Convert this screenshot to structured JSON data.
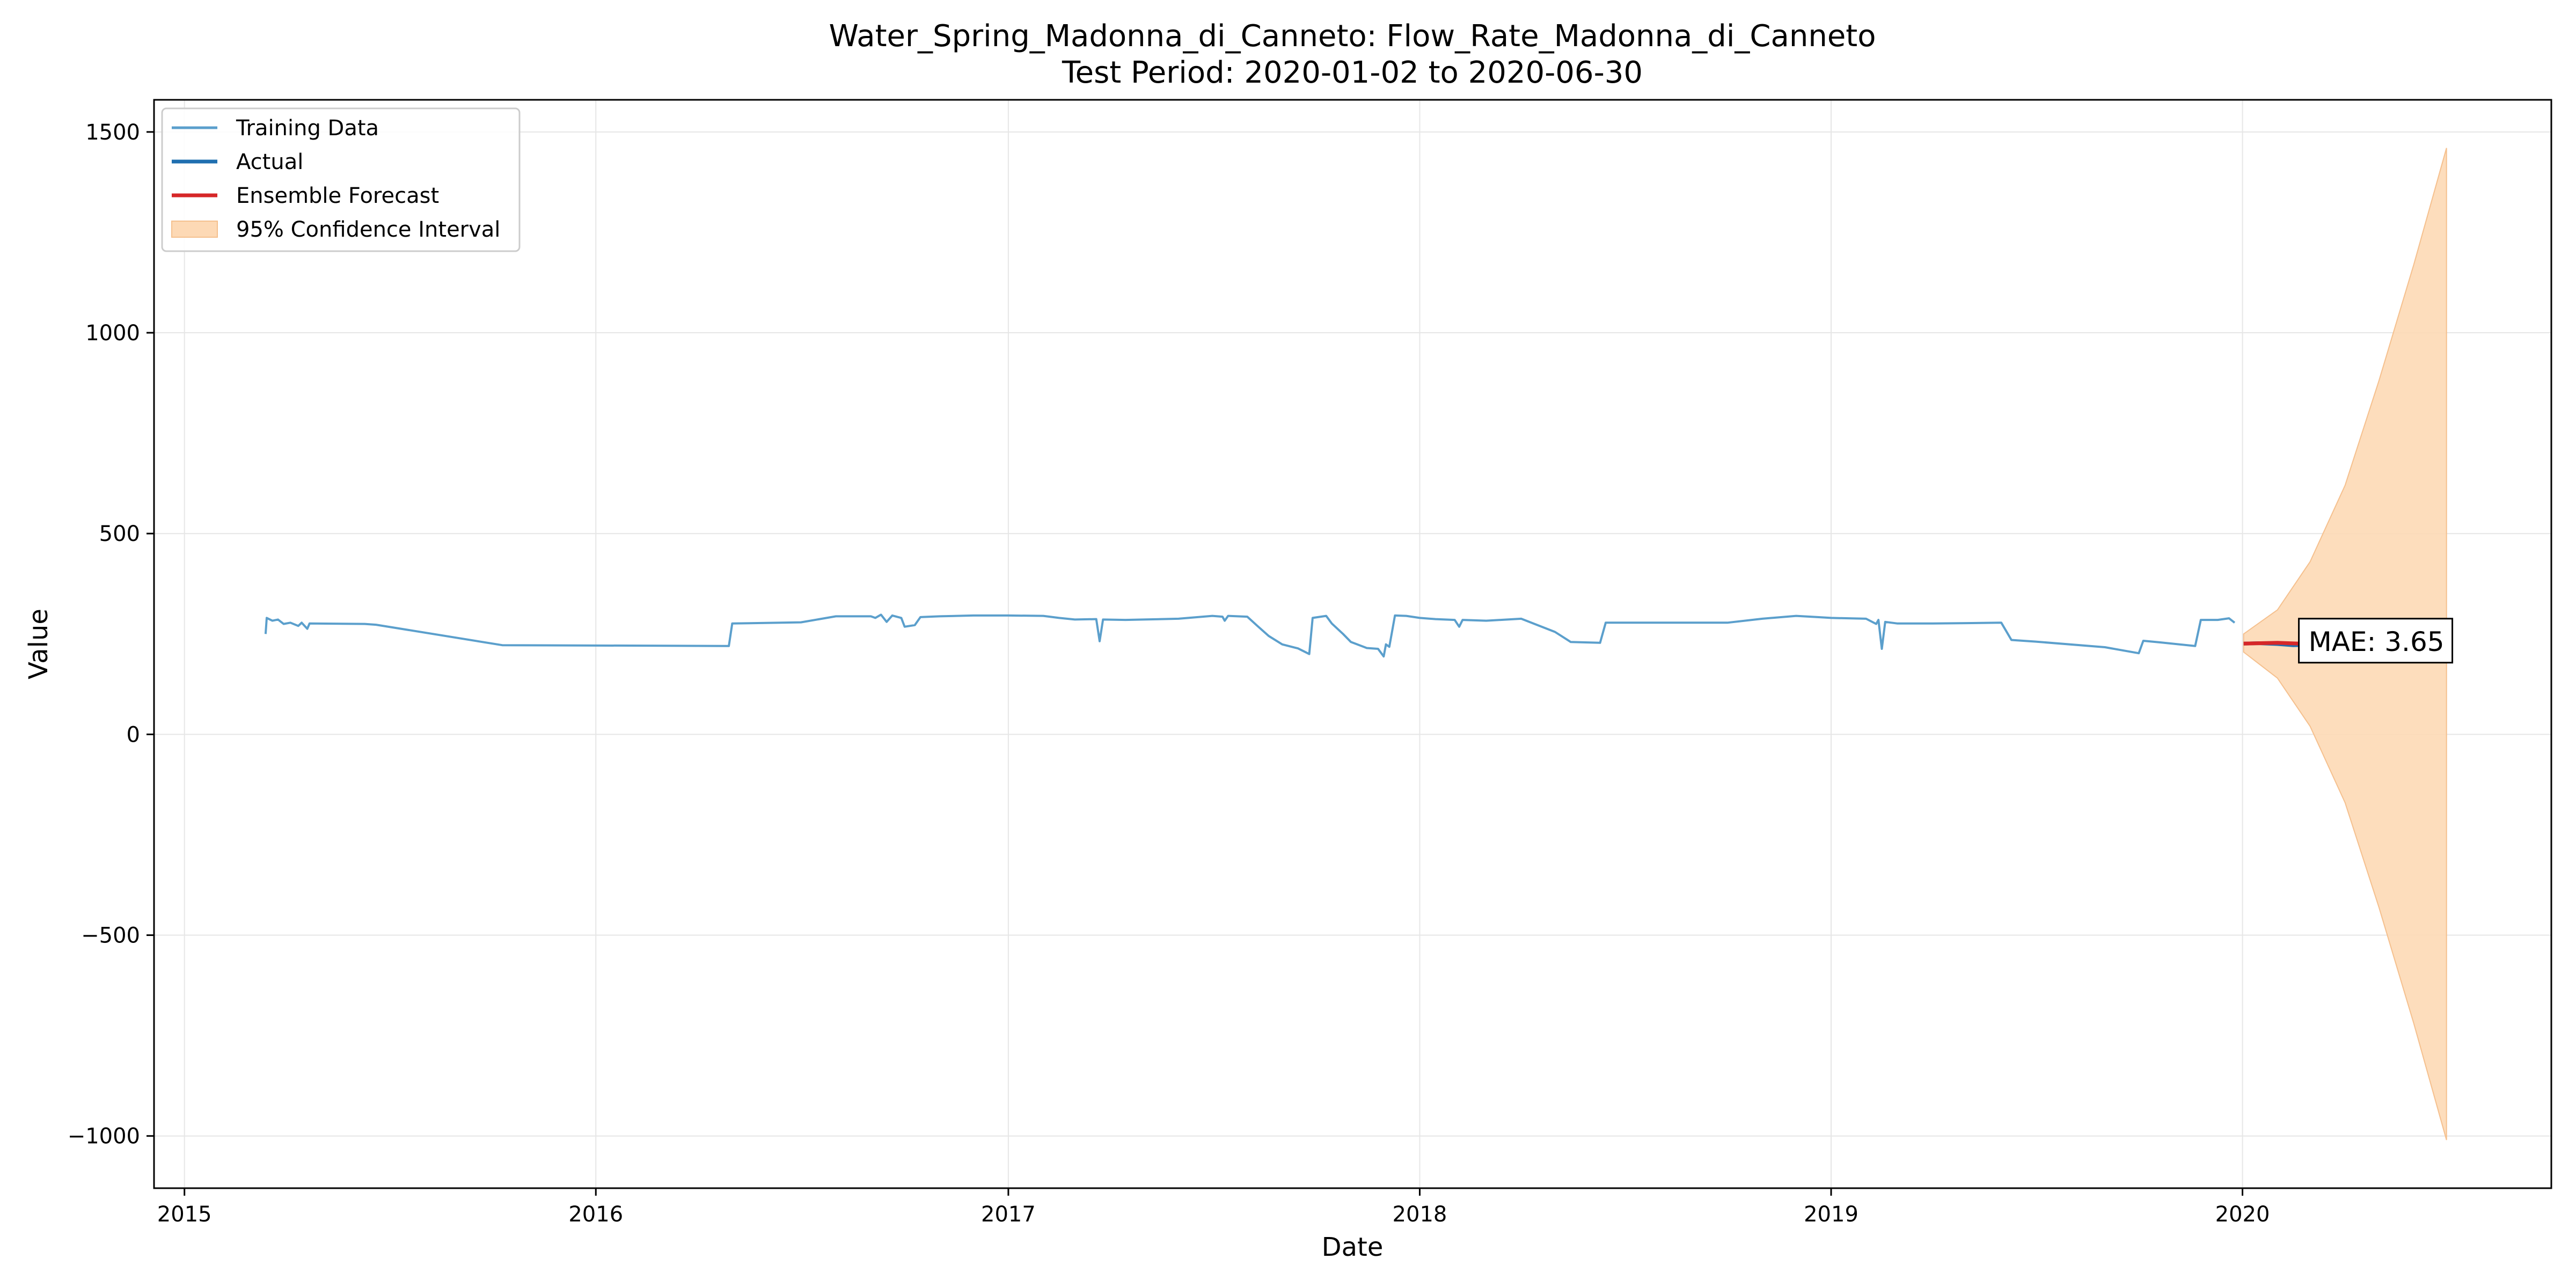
{
  "chart_data": {
    "type": "line",
    "title": "Water_Spring_Madonna_di_Canneto: Flow_Rate_Madonna_di_Canneto",
    "subtitle": "Test Period: 2020-01-02 to 2020-06-30",
    "xlabel": "Date",
    "ylabel": "Value",
    "xlim": [
      "2014-12-05",
      "2020-10-01"
    ],
    "ylim": [
      -1130,
      1580
    ],
    "xticks": [
      {
        "date": "2015-01-01",
        "label": "2015"
      },
      {
        "date": "2016-01-01",
        "label": "2016"
      },
      {
        "date": "2017-01-01",
        "label": "2017"
      },
      {
        "date": "2018-01-01",
        "label": "2018"
      },
      {
        "date": "2019-01-01",
        "label": "2019"
      },
      {
        "date": "2020-01-01",
        "label": "2020"
      }
    ],
    "yticks": [
      {
        "value": -1000,
        "label": "−1000"
      },
      {
        "value": -500,
        "label": "−500"
      },
      {
        "value": 0,
        "label": "0"
      },
      {
        "value": 500,
        "label": "500"
      },
      {
        "value": 1000,
        "label": "1000"
      },
      {
        "value": 1500,
        "label": "1500"
      }
    ],
    "grid": true,
    "legend_position": "top-left",
    "annotation": {
      "text": "MAE: 3.65",
      "date": "2020-02-20",
      "value": 232
    },
    "series": [
      {
        "name": "Training Data",
        "color": "#5b9fcc",
        "points": [
          [
            "2015-03-14",
            250
          ],
          [
            "2015-03-15",
            290
          ],
          [
            "2015-03-20",
            283
          ],
          [
            "2015-03-25",
            286
          ],
          [
            "2015-03-30",
            275
          ],
          [
            "2015-04-05",
            278
          ],
          [
            "2015-04-12",
            270
          ],
          [
            "2015-04-15",
            278
          ],
          [
            "2015-04-20",
            263
          ],
          [
            "2015-04-22",
            276
          ],
          [
            "2015-06-10",
            275
          ],
          [
            "2015-06-20",
            273
          ],
          [
            "2015-10-10",
            222
          ],
          [
            "2016-04-28",
            220
          ],
          [
            "2016-05-01",
            276
          ],
          [
            "2016-07-01",
            279
          ],
          [
            "2016-08-01",
            294
          ],
          [
            "2016-09-01",
            294
          ],
          [
            "2016-09-05",
            290
          ],
          [
            "2016-09-10",
            298
          ],
          [
            "2016-09-15",
            280
          ],
          [
            "2016-09-20",
            296
          ],
          [
            "2016-09-28",
            290
          ],
          [
            "2016-10-01",
            268
          ],
          [
            "2016-10-10",
            272
          ],
          [
            "2016-10-15",
            292
          ],
          [
            "2016-11-01",
            294
          ],
          [
            "2016-12-01",
            296
          ],
          [
            "2017-01-01",
            296
          ],
          [
            "2017-02-01",
            295
          ],
          [
            "2017-02-15",
            290
          ],
          [
            "2017-03-01",
            286
          ],
          [
            "2017-03-20",
            287
          ],
          [
            "2017-03-23",
            232
          ],
          [
            "2017-03-26",
            286
          ],
          [
            "2017-04-15",
            285
          ],
          [
            "2017-05-01",
            286
          ],
          [
            "2017-06-01",
            288
          ],
          [
            "2017-07-01",
            295
          ],
          [
            "2017-07-10",
            293
          ],
          [
            "2017-07-12",
            283
          ],
          [
            "2017-07-15",
            295
          ],
          [
            "2017-08-01",
            293
          ],
          [
            "2017-08-10",
            270
          ],
          [
            "2017-08-20",
            245
          ],
          [
            "2017-09-01",
            224
          ],
          [
            "2017-09-15",
            214
          ],
          [
            "2017-09-25",
            200
          ],
          [
            "2017-09-28",
            290
          ],
          [
            "2017-10-10",
            295
          ],
          [
            "2017-10-15",
            276
          ],
          [
            "2017-10-25",
            250
          ],
          [
            "2017-11-01",
            230
          ],
          [
            "2017-11-15",
            215
          ],
          [
            "2017-11-25",
            213
          ],
          [
            "2017-11-30",
            194
          ],
          [
            "2017-12-02",
            224
          ],
          [
            "2017-12-05",
            218
          ],
          [
            "2017-12-10",
            296
          ],
          [
            "2017-12-20",
            295
          ],
          [
            "2018-01-01",
            290
          ],
          [
            "2018-01-15",
            287
          ],
          [
            "2018-02-01",
            285
          ],
          [
            "2018-02-05",
            268
          ],
          [
            "2018-02-08",
            285
          ],
          [
            "2018-03-01",
            283
          ],
          [
            "2018-04-01",
            288
          ],
          [
            "2018-05-01",
            255
          ],
          [
            "2018-05-15",
            230
          ],
          [
            "2018-06-10",
            228
          ],
          [
            "2018-06-15",
            278
          ],
          [
            "2018-07-01",
            278
          ],
          [
            "2018-08-01",
            278
          ],
          [
            "2018-10-01",
            278
          ],
          [
            "2018-11-01",
            288
          ],
          [
            "2018-12-01",
            295
          ],
          [
            "2018-12-20",
            292
          ],
          [
            "2019-01-01",
            290
          ],
          [
            "2019-02-01",
            288
          ],
          [
            "2019-02-10",
            275
          ],
          [
            "2019-02-12",
            285
          ],
          [
            "2019-02-15",
            213
          ],
          [
            "2019-02-18",
            280
          ],
          [
            "2019-03-01",
            276
          ],
          [
            "2019-04-01",
            276
          ],
          [
            "2019-05-01",
            277
          ],
          [
            "2019-06-01",
            278
          ],
          [
            "2019-06-10",
            235
          ],
          [
            "2019-07-01",
            231
          ],
          [
            "2019-09-01",
            217
          ],
          [
            "2019-10-01",
            202
          ],
          [
            "2019-10-05",
            233
          ],
          [
            "2019-10-20",
            229
          ],
          [
            "2019-11-20",
            220
          ],
          [
            "2019-11-25",
            285
          ],
          [
            "2019-12-10",
            285
          ],
          [
            "2019-12-20",
            289
          ],
          [
            "2019-12-25",
            278
          ]
        ]
      },
      {
        "name": "Actual",
        "color": "#1f6fb0",
        "points": [
          [
            "2020-01-02",
            226
          ],
          [
            "2020-01-15",
            227
          ],
          [
            "2020-02-01",
            225
          ],
          [
            "2020-02-15",
            222
          ],
          [
            "2020-03-01",
            223
          ],
          [
            "2020-03-05",
            210
          ],
          [
            "2020-03-08",
            222
          ]
        ]
      },
      {
        "name": "Ensemble Forecast",
        "color": "#d62728",
        "points": [
          [
            "2020-01-02",
            226
          ],
          [
            "2020-02-01",
            228
          ],
          [
            "2020-03-01",
            225
          ],
          [
            "2020-03-10",
            224
          ]
        ]
      }
    ],
    "confidence_interval": {
      "name": "95% Confidence Interval",
      "color": "#fdd9b5",
      "upper": [
        [
          "2020-01-02",
          250
        ],
        [
          "2020-02-01",
          310
        ],
        [
          "2020-03-01",
          430
        ],
        [
          "2020-04-01",
          620
        ],
        [
          "2020-05-01",
          880
        ],
        [
          "2020-06-01",
          1170
        ],
        [
          "2020-06-30",
          1460
        ]
      ],
      "lower": [
        [
          "2020-01-02",
          205
        ],
        [
          "2020-02-01",
          140
        ],
        [
          "2020-03-01",
          20
        ],
        [
          "2020-04-01",
          -170
        ],
        [
          "2020-05-01",
          -430
        ],
        [
          "2020-06-01",
          -720
        ],
        [
          "2020-06-30",
          -1010
        ]
      ]
    }
  }
}
